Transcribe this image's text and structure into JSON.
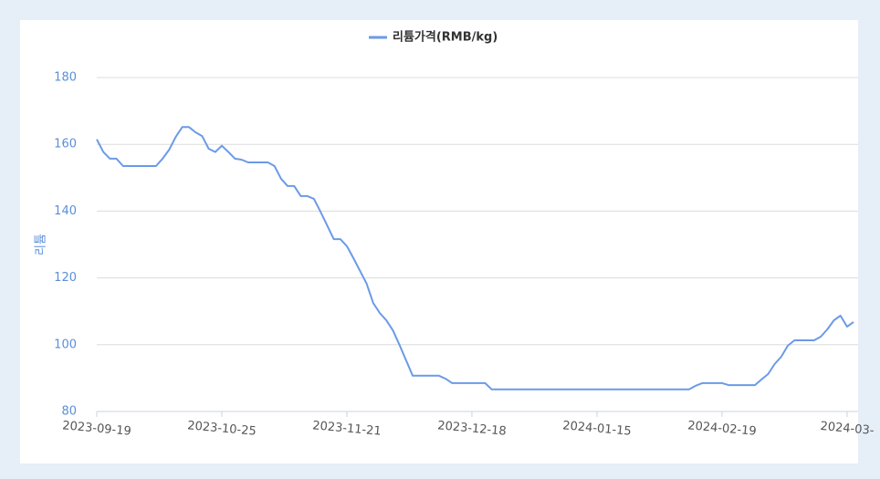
{
  "chart_data": {
    "type": "line",
    "ylabel": "리튬",
    "categories": [
      "2023-09-19",
      null,
      null,
      null,
      null,
      null,
      null,
      null,
      null,
      null,
      null,
      null,
      null,
      null,
      null,
      null,
      null,
      null,
      null,
      "2023-10-25",
      null,
      null,
      null,
      null,
      null,
      null,
      null,
      null,
      null,
      null,
      null,
      null,
      null,
      null,
      null,
      null,
      null,
      null,
      "2023-11-21",
      null,
      null,
      null,
      null,
      null,
      null,
      null,
      null,
      null,
      null,
      null,
      null,
      null,
      null,
      null,
      null,
      null,
      null,
      "2023-12-18",
      null,
      null,
      null,
      null,
      null,
      null,
      null,
      null,
      null,
      null,
      null,
      null,
      null,
      null,
      null,
      null,
      null,
      null,
      "2024-01-15",
      null,
      null,
      null,
      null,
      null,
      null,
      null,
      null,
      null,
      null,
      null,
      null,
      null,
      null,
      null,
      null,
      null,
      null,
      "2024-02-19",
      null,
      null,
      null,
      null,
      null,
      null,
      null,
      null,
      null,
      null,
      null,
      null,
      null,
      null,
      null,
      null,
      null,
      null,
      "2024-03-",
      null
    ],
    "series": [
      {
        "name": "리튬가격(RMB/kg)",
        "color": "#6b9ae8",
        "values": [
          161.5,
          157.7,
          155.7,
          155.7,
          153.5,
          153.5,
          153.5,
          153.5,
          153.5,
          153.5,
          155.7,
          158.4,
          162.2,
          165.2,
          165.2,
          163.6,
          162.5,
          158.7,
          157.7,
          159.6,
          157.7,
          155.7,
          155.4,
          154.6,
          154.6,
          154.6,
          154.6,
          153.5,
          149.7,
          147.5,
          147.5,
          144.5,
          144.5,
          143.7,
          139.8,
          135.7,
          131.6,
          131.6,
          129.5,
          125.9,
          122.1,
          118.3,
          112.5,
          109.5,
          107.3,
          104.3,
          99.9,
          95.3,
          90.7,
          90.7,
          90.7,
          90.7,
          90.7,
          89.8,
          88.5,
          88.5,
          88.5,
          88.5,
          88.5,
          88.5,
          86.6,
          86.6,
          86.6,
          86.6,
          86.6,
          86.6,
          86.6,
          86.6,
          86.6,
          86.6,
          86.6,
          86.6,
          86.6,
          86.6,
          86.6,
          86.6,
          86.6,
          86.6,
          86.6,
          86.6,
          86.6,
          86.6,
          86.6,
          86.6,
          86.6,
          86.6,
          86.6,
          86.6,
          86.6,
          86.6,
          86.6,
          87.7,
          88.5,
          88.5,
          88.5,
          88.5,
          87.9,
          87.9,
          87.9,
          87.9,
          87.9,
          89.6,
          91.2,
          94.2,
          96.4,
          99.7,
          101.3,
          101.3,
          101.3,
          101.3,
          102.4,
          104.6,
          107.3,
          108.7,
          105.4,
          106.8
        ]
      }
    ],
    "ylim": [
      80,
      180
    ],
    "yticks": [
      80,
      100,
      120,
      140,
      160,
      180
    ],
    "grid": true,
    "legend": "top"
  }
}
